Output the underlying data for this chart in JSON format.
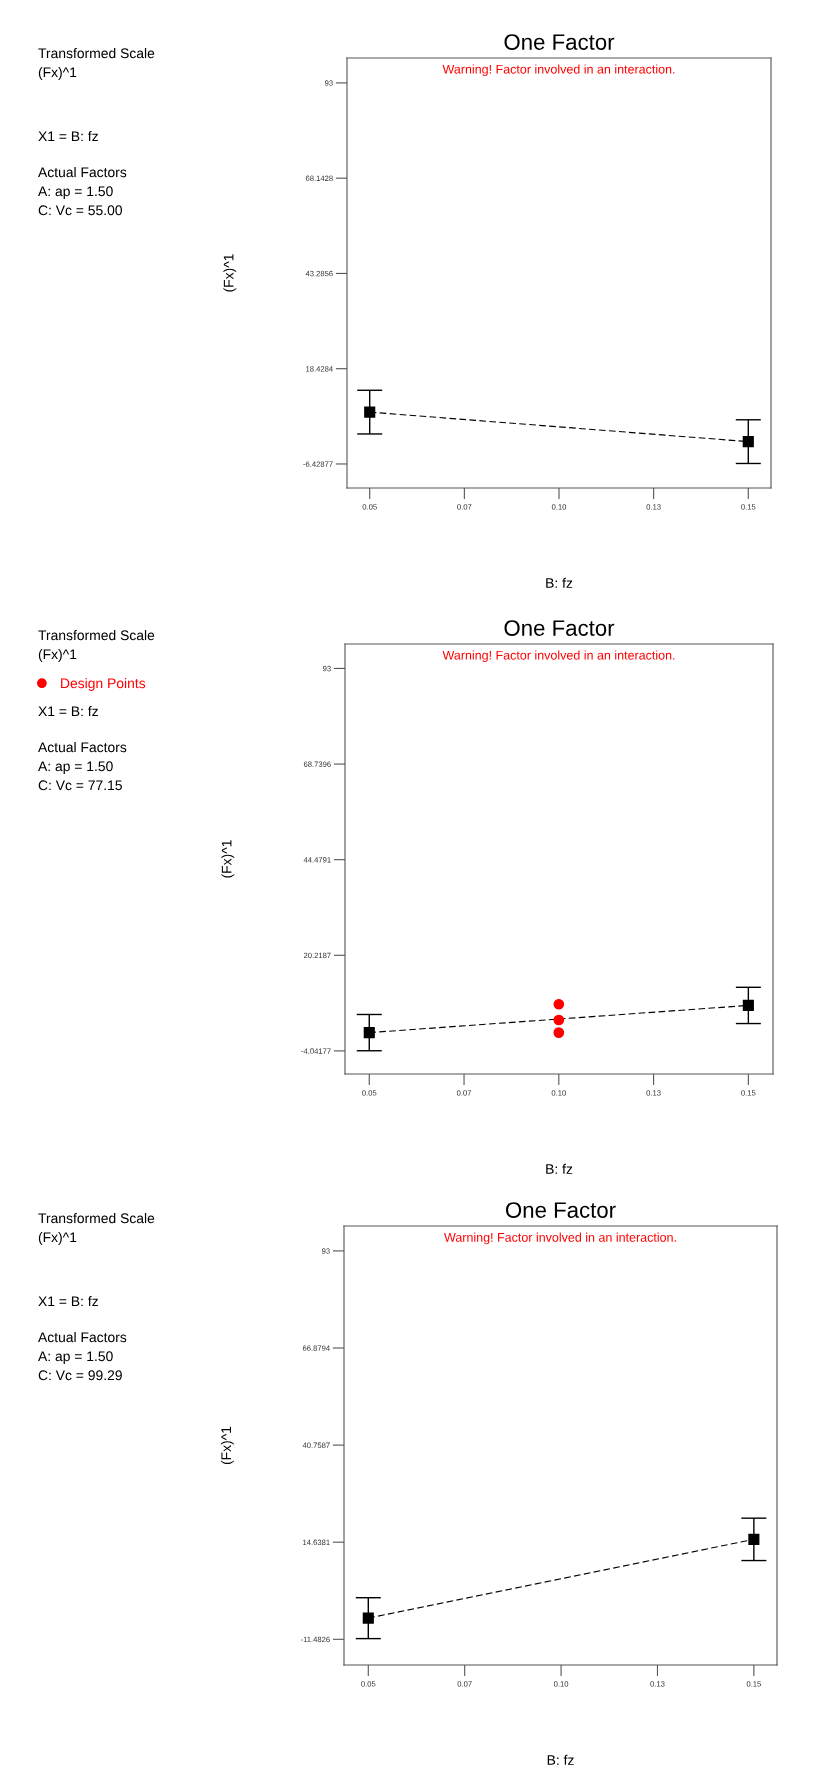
{
  "chart_data": [
    {
      "type": "line",
      "title": "One Factor",
      "subtitle": "Warning! Factor involved in an interaction.",
      "xlabel": "B: fz",
      "ylabel": "(Fx)^1",
      "annotations": [
        "Transformed Scale",
        "(Fx)^1",
        "X1 = B: fz",
        "Actual Factors",
        "A: ap = 1.50",
        "C: Vc = 55.00"
      ],
      "xlim": [
        0.044,
        0.156
      ],
      "ylim": [
        -12.7,
        99.5
      ],
      "xticks": [
        {
          "value": 0.05,
          "label": "0.05"
        },
        {
          "value": 0.075,
          "label": "0.07"
        },
        {
          "value": 0.1,
          "label": "0.10"
        },
        {
          "value": 0.125,
          "label": "0.13"
        },
        {
          "value": 0.15,
          "label": "0.15"
        }
      ],
      "yticks": [
        -6.42877,
        18.4284,
        43.2856,
        68.1428,
        93
      ],
      "marker": "square",
      "line_style": "dashed",
      "grid": false,
      "series": [
        {
          "x": [
            0.05,
            0.15
          ],
          "values": [
            7.1,
            -0.6
          ],
          "errors": [
            5.7,
            5.7
          ],
          "color": "#000000"
        }
      ]
    },
    {
      "type": "line",
      "title": "One Factor",
      "subtitle": "Warning! Factor involved in an interaction.",
      "xlabel": "B: fz",
      "ylabel": "(Fx)^1",
      "annotations": [
        "Transformed Scale",
        "(Fx)^1",
        "X1 = B: fz",
        "Actual Factors",
        "A: ap = 1.50",
        "C: Vc = 77.15"
      ],
      "xlim": [
        0.0436,
        0.1565
      ],
      "ylim": [
        -9.9,
        99.2
      ],
      "xticks": [
        {
          "value": 0.05,
          "label": "0.05"
        },
        {
          "value": 0.075,
          "label": "0.07"
        },
        {
          "value": 0.1,
          "label": "0.10"
        },
        {
          "value": 0.125,
          "label": "0.13"
        },
        {
          "value": 0.15,
          "label": "0.15"
        }
      ],
      "yticks": [
        -4.04177,
        20.2187,
        44.4791,
        68.7396,
        93
      ],
      "marker": "square",
      "line_style": "dashed",
      "grid": false,
      "legend": "left",
      "series": [
        {
          "x": [
            0.05,
            0.15
          ],
          "values": [
            0.6,
            7.5
          ],
          "errors": [
            4.6,
            4.6
          ],
          "color": "#000000"
        },
        {
          "type": "scatter",
          "name": "Design Points",
          "marker": "circle",
          "x": [
            0.1,
            0.1,
            0.1
          ],
          "values": [
            7.8,
            3.8,
            0.6
          ],
          "color": "#ff0000"
        }
      ]
    },
    {
      "type": "line",
      "title": "One Factor",
      "subtitle": "Warning! Factor involved in an interaction.",
      "xlabel": "B: fz",
      "ylabel": "(Fx)^1",
      "annotations": [
        "Transformed Scale",
        "(Fx)^1",
        "X1 = B: fz",
        "Actual Factors",
        "A: ap = 1.50",
        "C: Vc = 99.29"
      ],
      "xlim": [
        0.0437,
        0.156
      ],
      "ylim": [
        -18.4,
        99.7
      ],
      "xticks": [
        {
          "value": 0.05,
          "label": "0.05"
        },
        {
          "value": 0.075,
          "label": "0.07"
        },
        {
          "value": 0.1,
          "label": "0.10"
        },
        {
          "value": 0.125,
          "label": "0.13"
        },
        {
          "value": 0.15,
          "label": "0.15"
        }
      ],
      "yticks": [
        -11.4826,
        14.6381,
        40.7587,
        66.8794,
        93
      ],
      "marker": "square",
      "line_style": "dashed",
      "grid": false,
      "series": [
        {
          "x": [
            0.05,
            0.15
          ],
          "values": [
            -5.8,
            15.4
          ],
          "errors": [
            5.5,
            5.7
          ],
          "color": "#000000"
        }
      ]
    }
  ]
}
